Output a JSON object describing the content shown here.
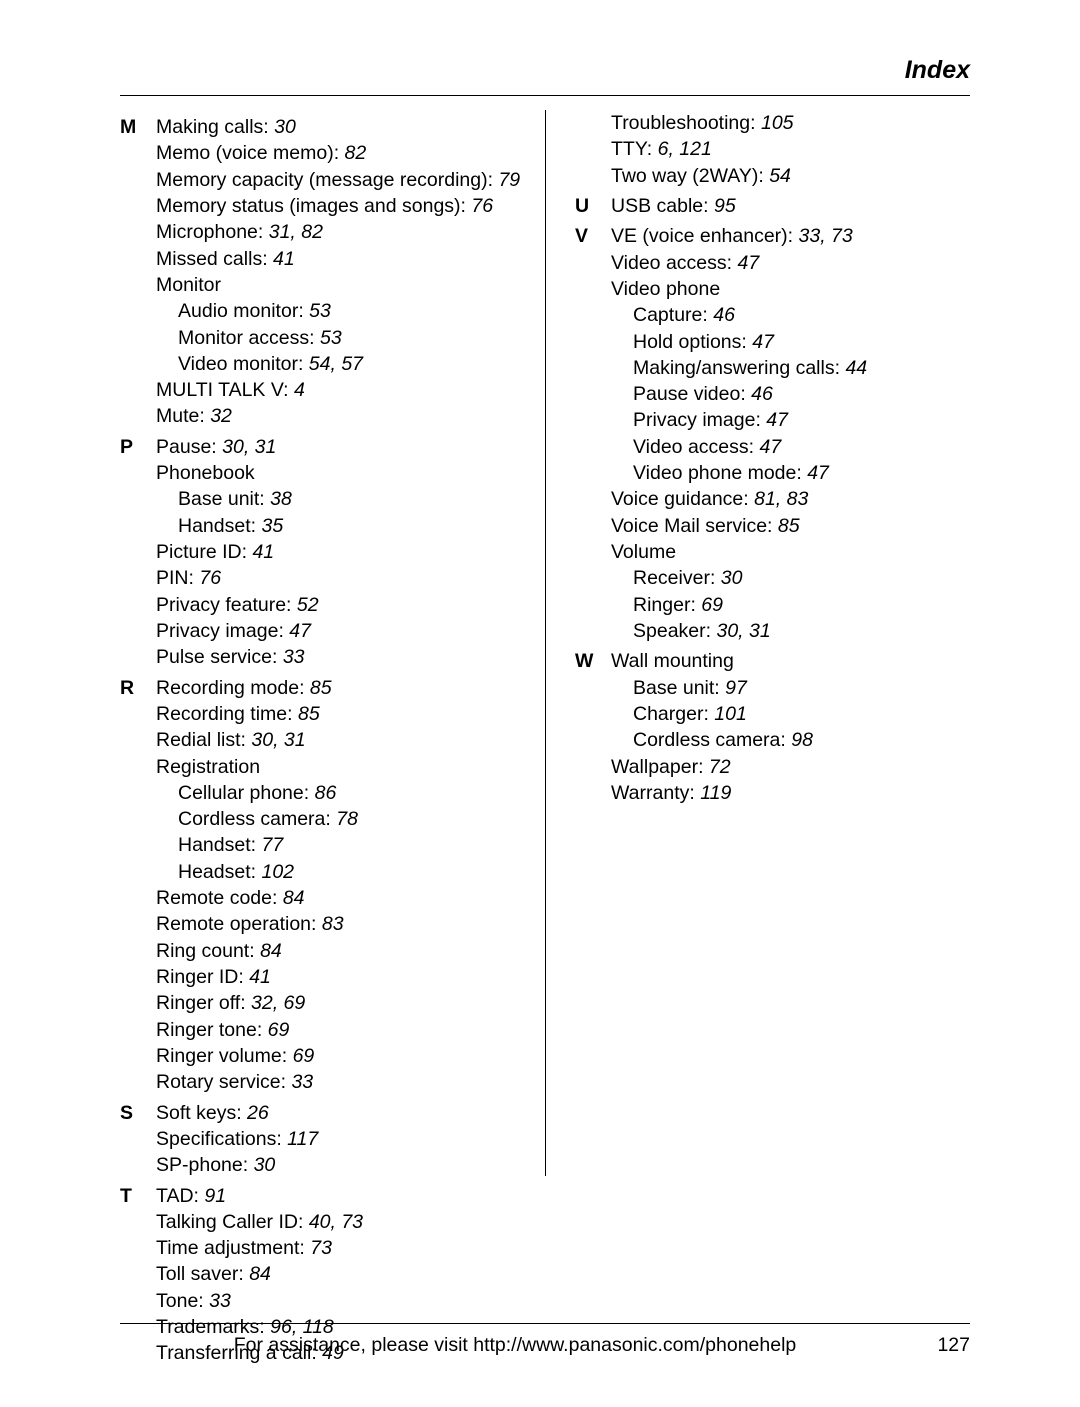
{
  "header": "Index",
  "footer_text": "For assistance, please visit http://www.panasonic.com/phonehelp",
  "page_number": "127",
  "colors": {
    "text": "#000000",
    "background": "#ffffff",
    "rule": "#000000"
  },
  "typography": {
    "base_fontsize_pt": 15,
    "header_fontsize_pt": 19,
    "line_height": 1.35,
    "font_family": "Arial"
  },
  "left_sections": [
    {
      "letter": "M",
      "items": [
        {
          "t": "Making calls: ",
          "p": "30",
          "lvl": 0
        },
        {
          "t": "Memo (voice memo): ",
          "p": "82",
          "lvl": 0
        },
        {
          "t": "Memory capacity (message recording): ",
          "p": "79",
          "lvl": 0
        },
        {
          "t": "Memory status (images and songs): ",
          "p": "76",
          "lvl": 0
        },
        {
          "t": "Microphone: ",
          "p": "31, 82",
          "lvl": 0
        },
        {
          "t": "Missed calls: ",
          "p": "41",
          "lvl": 0
        },
        {
          "t": "Monitor",
          "p": "",
          "lvl": 0
        },
        {
          "t": "Audio monitor: ",
          "p": "53",
          "lvl": 1
        },
        {
          "t": "Monitor access: ",
          "p": "53",
          "lvl": 1
        },
        {
          "t": "Video monitor: ",
          "p": "54, 57",
          "lvl": 1
        },
        {
          "t": "MULTI TALK V: ",
          "p": "4",
          "lvl": 0
        },
        {
          "t": "Mute: ",
          "p": "32",
          "lvl": 0
        }
      ]
    },
    {
      "letter": "P",
      "items": [
        {
          "t": "Pause: ",
          "p": "30, 31",
          "lvl": 0
        },
        {
          "t": "Phonebook",
          "p": "",
          "lvl": 0
        },
        {
          "t": "Base unit: ",
          "p": "38",
          "lvl": 1
        },
        {
          "t": "Handset: ",
          "p": "35",
          "lvl": 1
        },
        {
          "t": "Picture ID: ",
          "p": "41",
          "lvl": 0
        },
        {
          "t": "PIN: ",
          "p": "76",
          "lvl": 0
        },
        {
          "t": "Privacy feature: ",
          "p": "52",
          "lvl": 0
        },
        {
          "t": "Privacy image: ",
          "p": "47",
          "lvl": 0
        },
        {
          "t": "Pulse service: ",
          "p": "33",
          "lvl": 0
        }
      ]
    },
    {
      "letter": "R",
      "items": [
        {
          "t": "Recording mode: ",
          "p": "85",
          "lvl": 0
        },
        {
          "t": "Recording time: ",
          "p": "85",
          "lvl": 0
        },
        {
          "t": "Redial list: ",
          "p": "30, 31",
          "lvl": 0
        },
        {
          "t": "Registration",
          "p": "",
          "lvl": 0
        },
        {
          "t": "Cellular phone: ",
          "p": "86",
          "lvl": 1
        },
        {
          "t": "Cordless camera: ",
          "p": "78",
          "lvl": 1
        },
        {
          "t": "Handset: ",
          "p": "77",
          "lvl": 1
        },
        {
          "t": "Headset: ",
          "p": "102",
          "lvl": 1
        },
        {
          "t": "Remote code: ",
          "p": "84",
          "lvl": 0
        },
        {
          "t": "Remote operation: ",
          "p": "83",
          "lvl": 0
        },
        {
          "t": "Ring count: ",
          "p": "84",
          "lvl": 0
        },
        {
          "t": "Ringer ID: ",
          "p": "41",
          "lvl": 0
        },
        {
          "t": "Ringer off: ",
          "p": "32, 69",
          "lvl": 0
        },
        {
          "t": "Ringer tone: ",
          "p": "69",
          "lvl": 0
        },
        {
          "t": "Ringer volume: ",
          "p": "69",
          "lvl": 0
        },
        {
          "t": "Rotary service: ",
          "p": "33",
          "lvl": 0
        }
      ]
    },
    {
      "letter": "S",
      "items": [
        {
          "t": "Soft keys: ",
          "p": "26",
          "lvl": 0
        },
        {
          "t": "Specifications: ",
          "p": "117",
          "lvl": 0
        },
        {
          "t": "SP-phone: ",
          "p": "30",
          "lvl": 0
        }
      ]
    },
    {
      "letter": "T",
      "items": [
        {
          "t": "TAD: ",
          "p": "91",
          "lvl": 0
        },
        {
          "t": "Talking Caller ID: ",
          "p": "40, 73",
          "lvl": 0
        },
        {
          "t": "Time adjustment: ",
          "p": "73",
          "lvl": 0
        },
        {
          "t": "Toll saver: ",
          "p": "84",
          "lvl": 0
        },
        {
          "t": "Tone: ",
          "p": "33",
          "lvl": 0
        },
        {
          "t": "Trademarks: ",
          "p": "96, 118",
          "lvl": 0
        },
        {
          "t": "Transferring a call: ",
          "p": "49",
          "lvl": 0
        }
      ]
    }
  ],
  "right_sections": [
    {
      "letter": "",
      "items": [
        {
          "t": "Troubleshooting: ",
          "p": "105",
          "lvl": 0
        },
        {
          "t": "TTY: ",
          "p": "6, 121",
          "lvl": 0
        },
        {
          "t": "Two way (2WAY): ",
          "p": "54",
          "lvl": 0
        }
      ]
    },
    {
      "letter": "U",
      "items": [
        {
          "t": "USB cable: ",
          "p": "95",
          "lvl": 0
        }
      ]
    },
    {
      "letter": "V",
      "items": [
        {
          "t": "VE (voice enhancer): ",
          "p": "33, 73",
          "lvl": 0
        },
        {
          "t": "Video access: ",
          "p": "47",
          "lvl": 0
        },
        {
          "t": "Video phone",
          "p": "",
          "lvl": 0
        },
        {
          "t": "Capture: ",
          "p": "46",
          "lvl": 1
        },
        {
          "t": "Hold options: ",
          "p": "47",
          "lvl": 1
        },
        {
          "t": "Making/answering calls: ",
          "p": "44",
          "lvl": 1
        },
        {
          "t": "Pause video: ",
          "p": "46",
          "lvl": 1
        },
        {
          "t": "Privacy image: ",
          "p": "47",
          "lvl": 1
        },
        {
          "t": "Video access: ",
          "p": "47",
          "lvl": 1
        },
        {
          "t": "Video phone mode: ",
          "p": "47",
          "lvl": 1
        },
        {
          "t": "Voice guidance: ",
          "p": "81, 83",
          "lvl": 0
        },
        {
          "t": "Voice Mail service: ",
          "p": "85",
          "lvl": 0
        },
        {
          "t": "Volume",
          "p": "",
          "lvl": 0
        },
        {
          "t": "Receiver: ",
          "p": "30",
          "lvl": 1
        },
        {
          "t": "Ringer: ",
          "p": "69",
          "lvl": 1
        },
        {
          "t": "Speaker: ",
          "p": "30, 31",
          "lvl": 1
        }
      ]
    },
    {
      "letter": "W",
      "items": [
        {
          "t": "Wall mounting",
          "p": "",
          "lvl": 0
        },
        {
          "t": "Base unit: ",
          "p": "97",
          "lvl": 1
        },
        {
          "t": "Charger: ",
          "p": "101",
          "lvl": 1
        },
        {
          "t": "Cordless camera: ",
          "p": "98",
          "lvl": 1
        },
        {
          "t": "Wallpaper: ",
          "p": "72",
          "lvl": 0
        },
        {
          "t": "Warranty: ",
          "p": "119",
          "lvl": 0
        }
      ]
    }
  ]
}
